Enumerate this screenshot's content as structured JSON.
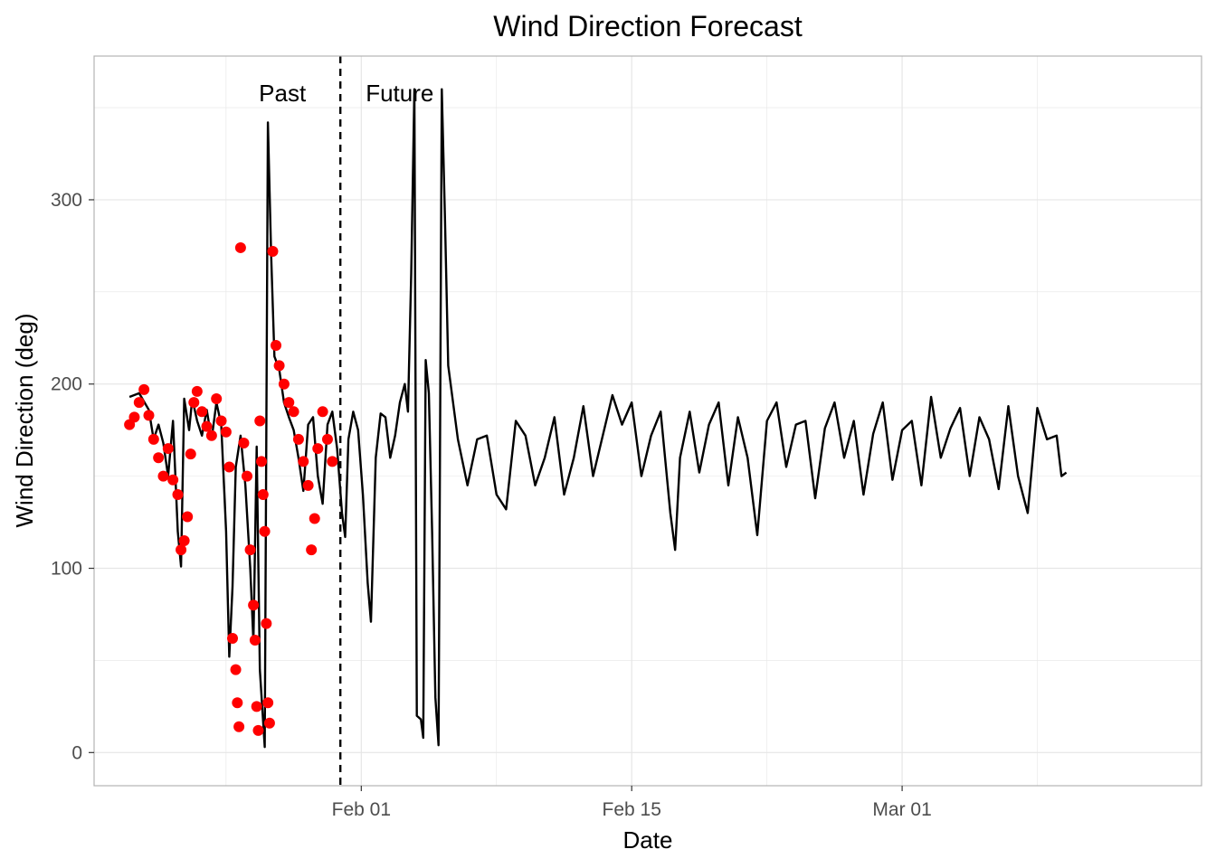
{
  "chart_data": {
    "type": "line",
    "title": "Wind Direction Forecast",
    "xlabel": "Date",
    "ylabel": "Wind Direction (deg)",
    "x_ticks": [
      "Feb 01",
      "Feb 15",
      "Mar 01"
    ],
    "y_ticks": [
      0,
      100,
      200,
      300
    ],
    "xlim": [
      "2024-01-18T04:00",
      "2024-03-15T12:00"
    ],
    "ylim": [
      -18,
      378
    ],
    "grid": true,
    "split_date": "2024-01-30T22:00",
    "annotations": [
      "Past",
      "Future"
    ],
    "colors": {
      "line": "#000000",
      "observed": "#ff0000",
      "grid": "#e6e6e6",
      "panel_border": "#b3b3b3"
    },
    "series": [
      {
        "kind": "line",
        "points": [
          [
            "2024-01-20T00:00",
            193
          ],
          [
            "2024-01-20T12:00",
            195
          ],
          [
            "2024-01-21T00:00",
            186
          ],
          [
            "2024-01-21T06:00",
            170
          ],
          [
            "2024-01-21T12:00",
            178
          ],
          [
            "2024-01-21T18:00",
            168
          ],
          [
            "2024-01-22T00:00",
            150
          ],
          [
            "2024-01-22T06:00",
            180
          ],
          [
            "2024-01-22T12:00",
            120
          ],
          [
            "2024-01-22T16:00",
            101
          ],
          [
            "2024-01-22T20:00",
            192
          ],
          [
            "2024-01-23T02:00",
            175
          ],
          [
            "2024-01-23T06:00",
            192
          ],
          [
            "2024-01-23T12:00",
            180
          ],
          [
            "2024-01-23T18:00",
            172
          ],
          [
            "2024-01-24T00:00",
            186
          ],
          [
            "2024-01-24T06:00",
            170
          ],
          [
            "2024-01-24T12:00",
            190
          ],
          [
            "2024-01-24T18:00",
            178
          ],
          [
            "2024-01-25T00:00",
            120
          ],
          [
            "2024-01-25T04:00",
            52
          ],
          [
            "2024-01-25T08:00",
            90
          ],
          [
            "2024-01-25T12:00",
            155
          ],
          [
            "2024-01-25T18:00",
            172
          ],
          [
            "2024-01-26T00:00",
            145
          ],
          [
            "2024-01-26T06:00",
            100
          ],
          [
            "2024-01-26T10:00",
            60
          ],
          [
            "2024-01-26T14:00",
            166
          ],
          [
            "2024-01-26T18:00",
            45
          ],
          [
            "2024-01-27T00:00",
            3
          ],
          [
            "2024-01-27T04:00",
            342
          ],
          [
            "2024-01-27T08:00",
            270
          ],
          [
            "2024-01-27T12:00",
            215
          ],
          [
            "2024-01-27T18:00",
            208
          ],
          [
            "2024-01-28T00:00",
            190
          ],
          [
            "2024-01-28T06:00",
            182
          ],
          [
            "2024-01-28T12:00",
            175
          ],
          [
            "2024-01-28T18:00",
            160
          ],
          [
            "2024-01-29T00:00",
            142
          ],
          [
            "2024-01-29T06:00",
            178
          ],
          [
            "2024-01-29T12:00",
            182
          ],
          [
            "2024-01-29T18:00",
            150
          ],
          [
            "2024-01-30T00:00",
            135
          ],
          [
            "2024-01-30T06:00",
            178
          ],
          [
            "2024-01-30T12:00",
            185
          ],
          [
            "2024-01-30T18:00",
            165
          ],
          [
            "2024-01-31T00:00",
            130
          ],
          [
            "2024-01-31T04:00",
            117
          ],
          [
            "2024-01-31T08:00",
            170
          ],
          [
            "2024-01-31T14:00",
            185
          ],
          [
            "2024-01-31T20:00",
            175
          ],
          [
            "2024-02-01T02:00",
            140
          ],
          [
            "2024-02-01T08:00",
            92
          ],
          [
            "2024-02-01T12:00",
            71
          ],
          [
            "2024-02-01T18:00",
            160
          ],
          [
            "2024-02-02T00:00",
            184
          ],
          [
            "2024-02-02T06:00",
            182
          ],
          [
            "2024-02-02T12:00",
            160
          ],
          [
            "2024-02-02T18:00",
            172
          ],
          [
            "2024-02-03T00:00",
            190
          ],
          [
            "2024-02-03T06:00",
            200
          ],
          [
            "2024-02-03T10:00",
            185
          ],
          [
            "2024-02-03T14:00",
            260
          ],
          [
            "2024-02-03T18:00",
            360
          ],
          [
            "2024-02-03T21:00",
            20
          ],
          [
            "2024-02-04T02:00",
            18
          ],
          [
            "2024-02-04T05:00",
            8
          ],
          [
            "2024-02-04T08:00",
            213
          ],
          [
            "2024-02-04T12:00",
            195
          ],
          [
            "2024-02-04T16:00",
            120
          ],
          [
            "2024-02-04T20:00",
            30
          ],
          [
            "2024-02-05T00:00",
            4
          ],
          [
            "2024-02-05T04:00",
            360
          ],
          [
            "2024-02-05T08:00",
            290
          ],
          [
            "2024-02-05T12:00",
            210
          ],
          [
            "2024-02-06T00:00",
            170
          ],
          [
            "2024-02-06T12:00",
            145
          ],
          [
            "2024-02-07T00:00",
            170
          ],
          [
            "2024-02-07T12:00",
            172
          ],
          [
            "2024-02-08T00:00",
            140
          ],
          [
            "2024-02-08T12:00",
            132
          ],
          [
            "2024-02-09T00:00",
            180
          ],
          [
            "2024-02-09T12:00",
            172
          ],
          [
            "2024-02-10T00:00",
            145
          ],
          [
            "2024-02-10T12:00",
            160
          ],
          [
            "2024-02-11T00:00",
            182
          ],
          [
            "2024-02-11T12:00",
            140
          ],
          [
            "2024-02-12T00:00",
            160
          ],
          [
            "2024-02-12T12:00",
            188
          ],
          [
            "2024-02-13T00:00",
            150
          ],
          [
            "2024-02-13T12:00",
            172
          ],
          [
            "2024-02-14T00:00",
            194
          ],
          [
            "2024-02-14T12:00",
            178
          ],
          [
            "2024-02-15T00:00",
            190
          ],
          [
            "2024-02-15T12:00",
            150
          ],
          [
            "2024-02-16T00:00",
            172
          ],
          [
            "2024-02-16T12:00",
            185
          ],
          [
            "2024-02-17T00:00",
            130
          ],
          [
            "2024-02-17T06:00",
            110
          ],
          [
            "2024-02-17T12:00",
            160
          ],
          [
            "2024-02-18T00:00",
            185
          ],
          [
            "2024-02-18T12:00",
            152
          ],
          [
            "2024-02-19T00:00",
            178
          ],
          [
            "2024-02-19T12:00",
            190
          ],
          [
            "2024-02-20T00:00",
            145
          ],
          [
            "2024-02-20T12:00",
            182
          ],
          [
            "2024-02-21T00:00",
            160
          ],
          [
            "2024-02-21T12:00",
            118
          ],
          [
            "2024-02-22T00:00",
            180
          ],
          [
            "2024-02-22T12:00",
            190
          ],
          [
            "2024-02-23T00:00",
            155
          ],
          [
            "2024-02-23T12:00",
            178
          ],
          [
            "2024-02-24T00:00",
            180
          ],
          [
            "2024-02-24T12:00",
            138
          ],
          [
            "2024-02-25T00:00",
            176
          ],
          [
            "2024-02-25T12:00",
            190
          ],
          [
            "2024-02-26T00:00",
            160
          ],
          [
            "2024-02-26T12:00",
            180
          ],
          [
            "2024-02-27T00:00",
            140
          ],
          [
            "2024-02-27T12:00",
            173
          ],
          [
            "2024-02-28T00:00",
            190
          ],
          [
            "2024-02-28T12:00",
            148
          ],
          [
            "2024-02-29T00:00",
            175
          ],
          [
            "2024-02-29T12:00",
            180
          ],
          [
            "2024-03-01T00:00",
            145
          ],
          [
            "2024-03-01T12:00",
            193
          ],
          [
            "2024-03-02T00:00",
            160
          ],
          [
            "2024-03-02T12:00",
            176
          ],
          [
            "2024-03-03T00:00",
            187
          ],
          [
            "2024-03-03T12:00",
            150
          ],
          [
            "2024-03-04T00:00",
            182
          ],
          [
            "2024-03-04T12:00",
            170
          ],
          [
            "2024-03-05T00:00",
            143
          ],
          [
            "2024-03-05T12:00",
            188
          ],
          [
            "2024-03-06T00:00",
            150
          ],
          [
            "2024-03-06T12:00",
            130
          ],
          [
            "2024-03-07T00:00",
            187
          ],
          [
            "2024-03-07T12:00",
            170
          ],
          [
            "2024-03-08T00:00",
            172
          ],
          [
            "2024-03-08T06:00",
            150
          ],
          [
            "2024-03-08T12:00",
            152
          ]
        ]
      },
      {
        "kind": "points",
        "points": [
          [
            "2024-01-20T00:00",
            178
          ],
          [
            "2024-01-20T06:00",
            182
          ],
          [
            "2024-01-20T12:00",
            190
          ],
          [
            "2024-01-20T18:00",
            197
          ],
          [
            "2024-01-21T00:00",
            183
          ],
          [
            "2024-01-21T06:00",
            170
          ],
          [
            "2024-01-21T12:00",
            160
          ],
          [
            "2024-01-21T18:00",
            150
          ],
          [
            "2024-01-22T00:00",
            165
          ],
          [
            "2024-01-22T06:00",
            148
          ],
          [
            "2024-01-22T12:00",
            140
          ],
          [
            "2024-01-22T16:00",
            110
          ],
          [
            "2024-01-22T20:00",
            115
          ],
          [
            "2024-01-23T00:00",
            128
          ],
          [
            "2024-01-23T04:00",
            162
          ],
          [
            "2024-01-23T08:00",
            190
          ],
          [
            "2024-01-23T12:00",
            196
          ],
          [
            "2024-01-23T18:00",
            185
          ],
          [
            "2024-01-24T00:00",
            177
          ],
          [
            "2024-01-24T06:00",
            172
          ],
          [
            "2024-01-24T12:00",
            192
          ],
          [
            "2024-01-24T18:00",
            180
          ],
          [
            "2024-01-25T00:00",
            174
          ],
          [
            "2024-01-25T04:00",
            155
          ],
          [
            "2024-01-25T08:00",
            62
          ],
          [
            "2024-01-25T12:00",
            45
          ],
          [
            "2024-01-25T14:00",
            27
          ],
          [
            "2024-01-25T16:00",
            14
          ],
          [
            "2024-01-25T18:00",
            274
          ],
          [
            "2024-01-25T22:00",
            168
          ],
          [
            "2024-01-26T02:00",
            150
          ],
          [
            "2024-01-26T06:00",
            110
          ],
          [
            "2024-01-26T10:00",
            80
          ],
          [
            "2024-01-26T12:00",
            61
          ],
          [
            "2024-01-26T14:00",
            25
          ],
          [
            "2024-01-26T16:00",
            12
          ],
          [
            "2024-01-26T18:00",
            180
          ],
          [
            "2024-01-26T20:00",
            158
          ],
          [
            "2024-01-26T22:00",
            140
          ],
          [
            "2024-01-27T00:00",
            120
          ],
          [
            "2024-01-27T02:00",
            70
          ],
          [
            "2024-01-27T04:00",
            27
          ],
          [
            "2024-01-27T06:00",
            16
          ],
          [
            "2024-01-27T10:00",
            272
          ],
          [
            "2024-01-27T14:00",
            221
          ],
          [
            "2024-01-27T18:00",
            210
          ],
          [
            "2024-01-28T00:00",
            200
          ],
          [
            "2024-01-28T06:00",
            190
          ],
          [
            "2024-01-28T12:00",
            185
          ],
          [
            "2024-01-28T18:00",
            170
          ],
          [
            "2024-01-29T00:00",
            158
          ],
          [
            "2024-01-29T06:00",
            145
          ],
          [
            "2024-01-29T10:00",
            110
          ],
          [
            "2024-01-29T14:00",
            127
          ],
          [
            "2024-01-29T18:00",
            165
          ],
          [
            "2024-01-30T00:00",
            185
          ],
          [
            "2024-01-30T06:00",
            170
          ],
          [
            "2024-01-30T12:00",
            158
          ]
        ]
      }
    ]
  }
}
